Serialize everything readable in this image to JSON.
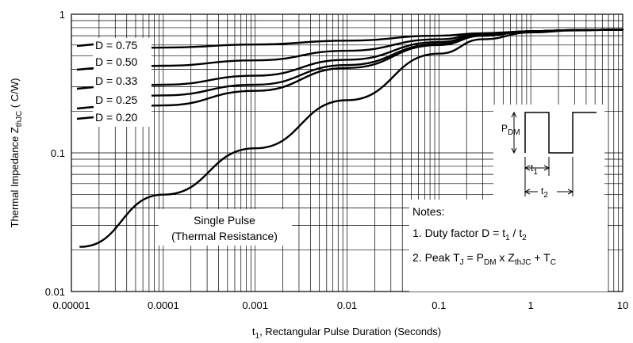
{
  "chart_data": {
    "type": "line",
    "x_scale": "log",
    "y_scale": "log",
    "xlim": [
      1e-05,
      10
    ],
    "ylim": [
      0.01,
      1
    ],
    "x_ticks": [
      "0.00001",
      "0.0001",
      "0.001",
      "0.01",
      "0.1",
      "1",
      "10"
    ],
    "y_ticks": [
      "1",
      "0.1",
      "0.01"
    ],
    "xlabel": {
      "main": "t",
      "sub": "1",
      "rest": ", Rectangular Pulse Duration (Seconds)"
    },
    "ylabel": {
      "main": "Thermal Impedance Z",
      "sub": "thJC",
      "rest": " ( C/W)"
    },
    "grid": true,
    "series": [
      {
        "name": "D = 0.75",
        "x": [
          1e-05,
          0.0001,
          0.001,
          0.01,
          0.1,
          0.3,
          1,
          3,
          10
        ],
        "y": [
          0.56,
          0.575,
          0.605,
          0.645,
          0.7,
          0.73,
          0.755,
          0.77,
          0.775
        ]
      },
      {
        "name": "D = 0.50",
        "x": [
          1e-05,
          0.0001,
          0.001,
          0.01,
          0.1,
          0.3,
          1,
          3,
          10
        ],
        "y": [
          0.41,
          0.425,
          0.465,
          0.545,
          0.66,
          0.72,
          0.755,
          0.77,
          0.775
        ]
      },
      {
        "name": "D = 0.33",
        "x": [
          1e-05,
          0.0001,
          0.001,
          0.01,
          0.1,
          0.3,
          1,
          3,
          10
        ],
        "y": [
          0.29,
          0.31,
          0.36,
          0.47,
          0.63,
          0.71,
          0.755,
          0.77,
          0.775
        ]
      },
      {
        "name": "D = 0.25",
        "x": [
          1e-05,
          0.0001,
          0.001,
          0.01,
          0.1,
          0.3,
          1,
          3,
          10
        ],
        "y": [
          0.24,
          0.26,
          0.31,
          0.43,
          0.61,
          0.7,
          0.755,
          0.77,
          0.775
        ]
      },
      {
        "name": "D = 0.20",
        "x": [
          1e-05,
          0.0001,
          0.001,
          0.01,
          0.1,
          0.3,
          1,
          3,
          10
        ],
        "y": [
          0.2,
          0.22,
          0.28,
          0.41,
          0.6,
          0.7,
          0.755,
          0.77,
          0.775
        ]
      },
      {
        "name": "Single Pulse",
        "x": [
          1.25e-05,
          0.0001,
          0.001,
          0.01,
          0.1,
          0.3,
          1,
          3,
          10
        ],
        "y": [
          0.021,
          0.05,
          0.108,
          0.24,
          0.52,
          0.66,
          0.74,
          0.765,
          0.775
        ]
      }
    ],
    "annotations": {
      "single_pulse_line1": "Single Pulse",
      "single_pulse_line2": "(Thermal Resistance)",
      "notes_title": "Notes:",
      "note1": {
        "prefix": "1. Duty factor D = ",
        "t1": "t",
        "t1_sub": "1",
        "sep": " / ",
        "t2": "t",
        "t2_sub": "2"
      },
      "note2": {
        "prefix": "2. Peak T",
        "tj_sub": "J",
        "eq": " = P",
        "pdm_sub": "DM",
        "x": " x Z",
        "zth_sub": "thJC",
        "plus": " + T",
        "tc_sub": "C"
      },
      "inset": {
        "p": "P",
        "p_sub": "DM",
        "t1": "t",
        "t1_sub": "1",
        "t2": "t",
        "t2_sub": "2"
      }
    }
  }
}
